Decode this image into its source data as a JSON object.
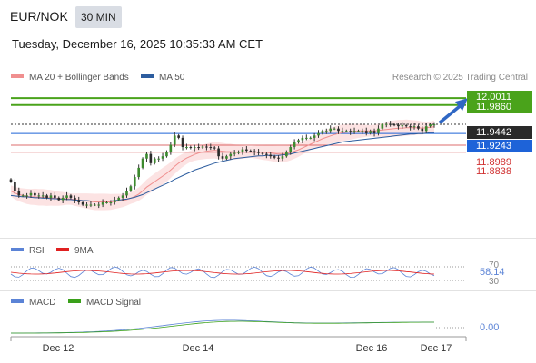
{
  "header": {
    "pair": "EUR/NOK",
    "timeframe": "30 MIN",
    "datetime": "Tuesday, December 16, 2025 10:35:33 AM CET",
    "copyright": "Research © 2025 Trading Central"
  },
  "legends": {
    "price": [
      {
        "label": "MA 20 + Bollinger Bands",
        "color": "#f08f8f"
      },
      {
        "label": "MA 50",
        "color": "#2d5d9f"
      }
    ],
    "rsi": [
      {
        "label": "RSI",
        "color": "#5b83d6"
      },
      {
        "label": "9MA",
        "color": "#e02020"
      }
    ],
    "macd": [
      {
        "label": "MACD",
        "color": "#5b83d6"
      },
      {
        "label": "MACD Signal",
        "color": "#3aa01a"
      }
    ]
  },
  "chart_data": {
    "type": "candlestick",
    "price_levels": [
      {
        "value": "12.0011",
        "kind": "target",
        "color": "#4aa31b"
      },
      {
        "value": "11.9860",
        "kind": "resistance",
        "color": "#4aa31b"
      },
      {
        "value": "11.9442",
        "kind": "last_price",
        "color": "#2a2a2a"
      },
      {
        "value": "11.9243",
        "kind": "pivot",
        "color": "#1e63d8"
      },
      {
        "value": "11.8989",
        "kind": "support",
        "color": "#d03030"
      },
      {
        "value": "11.8838",
        "kind": "support",
        "color": "#d03030"
      }
    ],
    "price_range": [
      11.712,
      12.025
    ],
    "x_axis_labels": [
      "Dec 12",
      "Dec 14",
      "Dec 16",
      "Dec 17"
    ],
    "candles_close": [
      11.82,
      11.8,
      11.79,
      11.79,
      11.79,
      11.795,
      11.79,
      11.79,
      11.79,
      11.785,
      11.79,
      11.785,
      11.78,
      11.785,
      11.79,
      11.785,
      11.78,
      11.775,
      11.77,
      11.77,
      11.77,
      11.77,
      11.77,
      11.775,
      11.775,
      11.775,
      11.78,
      11.785,
      11.79,
      11.8,
      11.81,
      11.83,
      11.85,
      11.87,
      11.88,
      11.86,
      11.87,
      11.87,
      11.875,
      11.885,
      11.9,
      11.92,
      11.915,
      11.895,
      11.895,
      11.893,
      11.895,
      11.894,
      11.896,
      11.895,
      11.894,
      11.892,
      11.875,
      11.87,
      11.875,
      11.88,
      11.882,
      11.885,
      11.89,
      11.887,
      11.886,
      11.884,
      11.882,
      11.88,
      11.878,
      11.875,
      11.872,
      11.87,
      11.875,
      11.885,
      11.895,
      11.905,
      11.91,
      11.915,
      11.915,
      11.915,
      11.92,
      11.925,
      11.93,
      11.93,
      11.935,
      11.935,
      11.93,
      11.93,
      11.93,
      11.928,
      11.93,
      11.93,
      11.93,
      11.925,
      11.93,
      11.925,
      11.935,
      11.945,
      11.945,
      11.944,
      11.943,
      11.94,
      11.942,
      11.94,
      11.938,
      11.94,
      11.935,
      11.93,
      11.94,
      11.944,
      11.944
    ],
    "ma20": [
      11.8,
      11.795,
      11.792,
      11.79,
      11.788,
      11.787,
      11.787,
      11.786,
      11.786,
      11.785,
      11.785,
      11.784,
      11.783,
      11.783,
      11.783,
      11.782,
      11.781,
      11.78,
      11.779,
      11.778,
      11.777,
      11.776,
      11.776,
      11.776,
      11.776,
      11.776,
      11.777,
      11.778,
      11.779,
      11.781,
      11.784,
      11.788,
      11.793,
      11.8,
      11.808,
      11.814,
      11.82,
      11.826,
      11.832,
      11.838,
      11.845,
      11.853,
      11.86,
      11.866,
      11.871,
      11.875,
      11.879,
      11.882,
      11.884,
      11.886,
      11.887,
      11.888,
      11.887,
      11.886,
      11.885,
      11.885,
      11.884,
      11.884,
      11.884,
      11.884,
      11.884,
      11.884,
      11.884,
      11.883,
      11.883,
      11.882,
      11.881,
      11.88,
      11.88,
      11.881,
      11.883,
      11.886,
      11.889,
      11.893,
      11.897,
      11.901,
      11.905,
      11.909,
      11.913,
      11.916,
      11.919,
      11.922,
      11.924,
      11.926,
      11.927,
      11.928,
      11.929,
      11.93,
      11.93,
      11.93,
      11.93,
      11.93,
      11.931,
      11.932,
      11.933,
      11.934,
      11.935,
      11.936,
      11.936,
      11.937,
      11.937,
      11.937,
      11.937,
      11.936,
      11.937,
      11.938,
      11.939
    ],
    "ma50": [
      11.79,
      11.789,
      11.788,
      11.787,
      11.787,
      11.786,
      11.785,
      11.785,
      11.784,
      11.784,
      11.783,
      11.783,
      11.782,
      11.782,
      11.781,
      11.781,
      11.78,
      11.78,
      11.779,
      11.779,
      11.778,
      11.778,
      11.778,
      11.778,
      11.778,
      11.778,
      11.779,
      11.78,
      11.781,
      11.782,
      11.784,
      11.786,
      11.789,
      11.792,
      11.796,
      11.8,
      11.804,
      11.808,
      11.812,
      11.816,
      11.82,
      11.825,
      11.829,
      11.833,
      11.837,
      11.841,
      11.845,
      11.848,
      11.851,
      11.854,
      11.857,
      11.86,
      11.862,
      11.864,
      11.866,
      11.868,
      11.87,
      11.871,
      11.872,
      11.873,
      11.874,
      11.875,
      11.876,
      11.876,
      11.877,
      11.877,
      11.877,
      11.877,
      11.878,
      11.879,
      11.88,
      11.882,
      11.884,
      11.886,
      11.888,
      11.89,
      11.892,
      11.894,
      11.896,
      11.898,
      11.9,
      11.902,
      11.904,
      11.906,
      11.907,
      11.908,
      11.909,
      11.91,
      11.911,
      11.912,
      11.913,
      11.914,
      11.915,
      11.916,
      11.917,
      11.918,
      11.919,
      11.92,
      11.921,
      11.922,
      11.923,
      11.923,
      11.924,
      11.924,
      11.925,
      11.926,
      11.926
    ],
    "rsi": {
      "levels": [
        "70",
        "30"
      ],
      "last_value": "58.14"
    },
    "macd": {
      "last_value": "0.00"
    },
    "forecast_arrow": {
      "from": 11.944,
      "to": 12.0011
    }
  }
}
